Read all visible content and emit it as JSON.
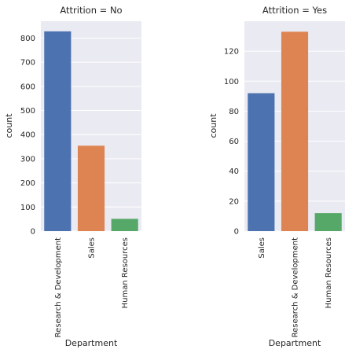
{
  "chart_data": [
    {
      "type": "bar",
      "title": "Attrition = No",
      "xlabel": "Department",
      "ylabel": "count",
      "categories": [
        "Research & Development",
        "Sales",
        "Human Resources"
      ],
      "values": [
        828,
        354,
        51
      ],
      "colors": [
        "#4c72b0",
        "#dd8452",
        "#55a868"
      ],
      "ylim": [
        0,
        870
      ],
      "yticks": [
        0,
        100,
        200,
        300,
        400,
        500,
        600,
        700,
        800
      ],
      "grid": true
    },
    {
      "type": "bar",
      "title": "Attrition = Yes",
      "xlabel": "Department",
      "ylabel": "count",
      "categories": [
        "Sales",
        "Research & Development",
        "Human Resources"
      ],
      "values": [
        92,
        133,
        12
      ],
      "colors": [
        "#4c72b0",
        "#dd8452",
        "#55a868"
      ],
      "ylim": [
        0,
        140
      ],
      "yticks": [
        0,
        20,
        40,
        60,
        80,
        100,
        120
      ],
      "grid": true
    }
  ]
}
